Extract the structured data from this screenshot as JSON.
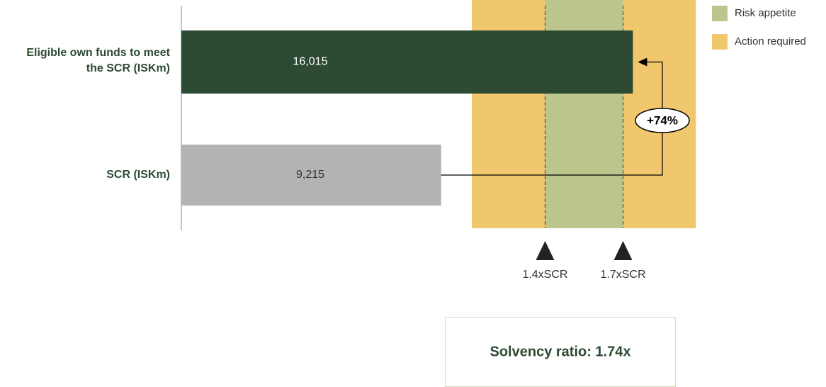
{
  "chart_data": {
    "type": "bar",
    "orientation": "horizontal",
    "categories": [
      "Eligible own funds to meet the SCR (ISKm)",
      "SCR (ISKm)"
    ],
    "values": [
      16015,
      9215
    ],
    "value_labels": [
      "16,015",
      "9,215"
    ],
    "colors": [
      "#2d4a33",
      "#b3b3b3"
    ],
    "label_colors": [
      "#ffffff",
      "#333333"
    ],
    "xlim": [
      0,
      20000
    ],
    "bands": [
      {
        "name": "Action required",
        "color": "#f1c76d",
        "range": [
          10300,
          18250
        ]
      },
      {
        "name": "Risk appetite",
        "color": "#bcc68c",
        "range": [
          12901,
          15666
        ]
      }
    ],
    "thresholds": [
      {
        "label": "1.4xSCR",
        "value": 12901
      },
      {
        "label": "1.7xSCR",
        "value": 15666
      }
    ],
    "annotation": "+74%",
    "summary": "Solvency ratio: 1.74x"
  }
}
